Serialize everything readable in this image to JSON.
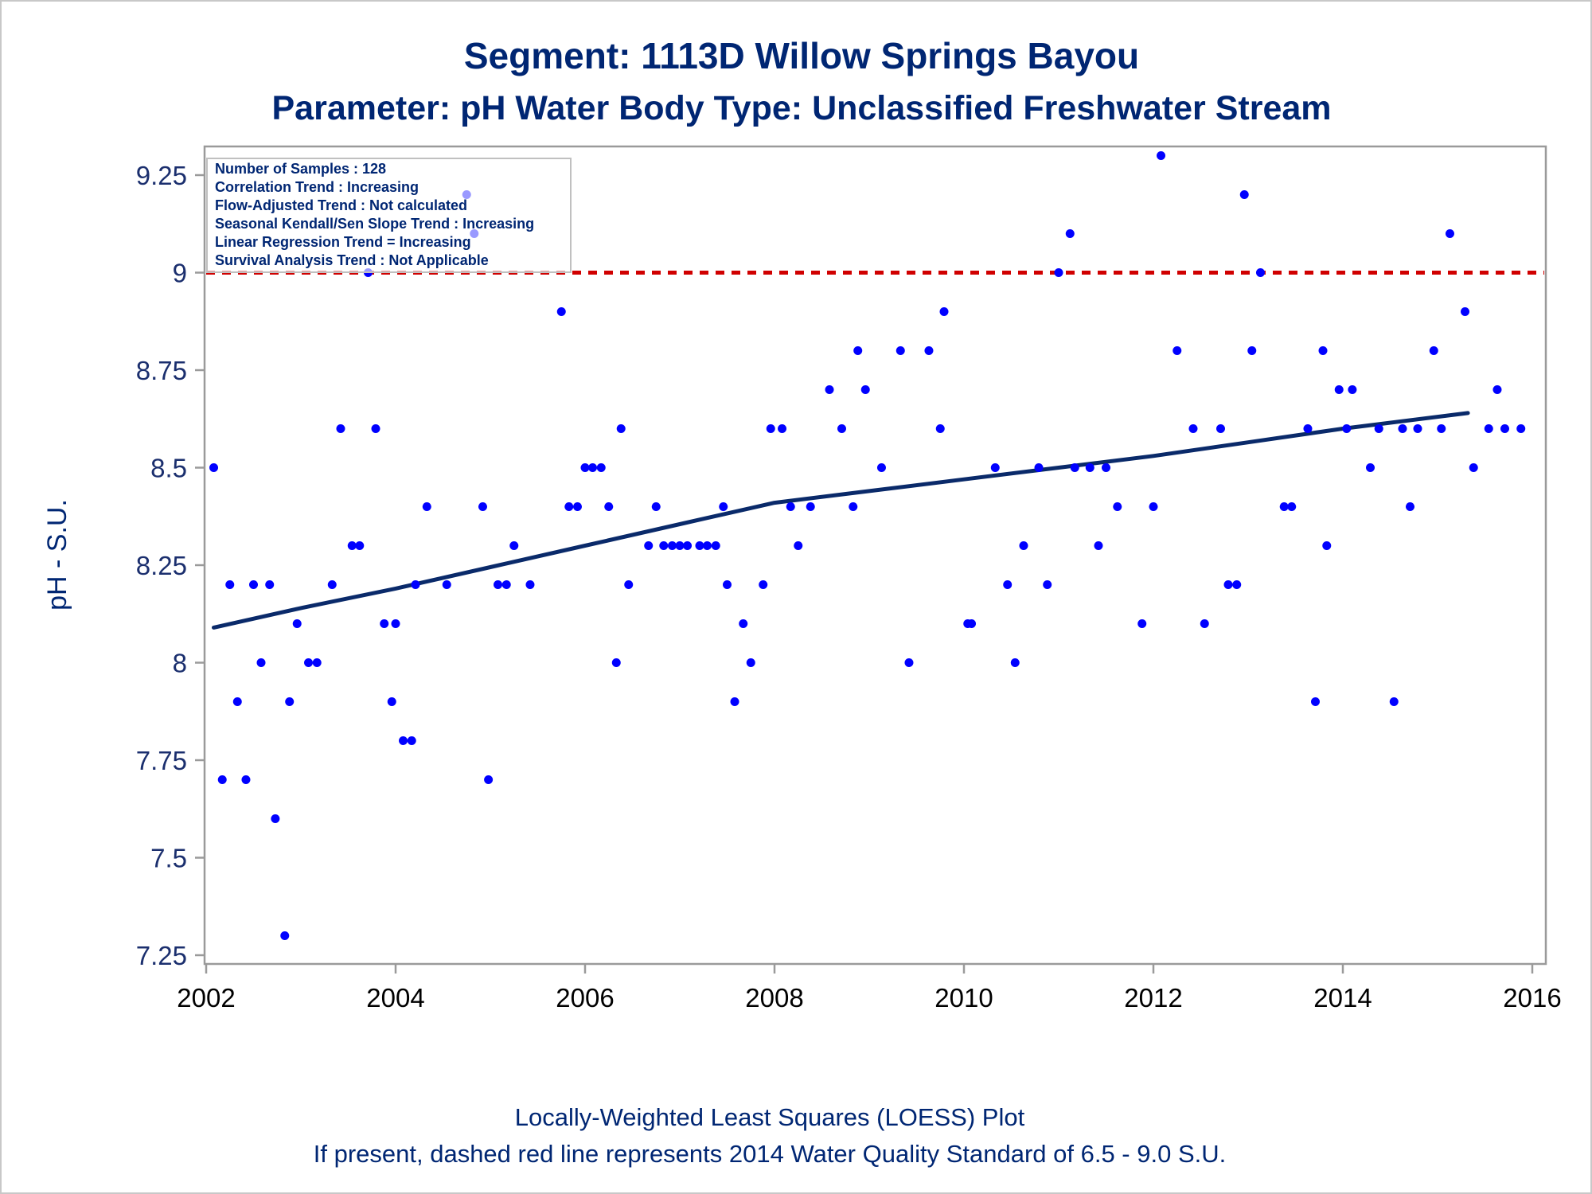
{
  "chart_data": {
    "type": "scatter",
    "title": "Segment: 1113D  Willow Springs Bayou",
    "subtitle": "Parameter: pH   Water Body Type: Unclassified Freshwater Stream",
    "xlabel": "",
    "ylabel": "pH - S.U.",
    "xlim": [
      2002,
      2016
    ],
    "ylim": [
      7.23,
      9.35
    ],
    "x_ticks": [
      2002,
      2004,
      2006,
      2008,
      2010,
      2012,
      2014,
      2016
    ],
    "y_ticks": [
      {
        "value": 7.25,
        "label": "7.25"
      },
      {
        "value": 7.5,
        "label": "7.5"
      },
      {
        "value": 7.75,
        "label": "7.75"
      },
      {
        "value": 8,
        "label": "8"
      },
      {
        "value": 8.25,
        "label": "8.25"
      },
      {
        "value": 8.5,
        "label": "8.5"
      },
      {
        "value": 8.75,
        "label": "8.75"
      },
      {
        "value": 9,
        "label": "9"
      },
      {
        "value": 9.25,
        "label": "9.25"
      }
    ],
    "grid": false,
    "colors": {
      "points": "#0000ff",
      "loess": "#0a2a6a",
      "standard": "#d00000",
      "title": "#002673"
    },
    "standard_line": {
      "y": 9.0,
      "style": "dashed"
    },
    "stats_box": {
      "placement": "top-left",
      "lines": [
        "Number of Samples : 128",
        "Correlation Trend : Increasing",
        "Flow-Adjusted Trend : Not calculated",
        "Seasonal Kendall/Sen Slope Trend : Increasing",
        "Linear Regression Trend = Increasing",
        "Survival Analysis Trend : Not Applicable"
      ]
    },
    "loess_line": [
      [
        2002.08,
        8.09
      ],
      [
        2003.0,
        8.14
      ],
      [
        2004.0,
        8.19
      ],
      [
        2005.0,
        8.245
      ],
      [
        2006.0,
        8.3
      ],
      [
        2007.0,
        8.355
      ],
      [
        2008.0,
        8.41
      ],
      [
        2009.0,
        8.44
      ],
      [
        2010.0,
        8.47
      ],
      [
        2011.0,
        8.5
      ],
      [
        2012.0,
        8.53
      ],
      [
        2013.0,
        8.565
      ],
      [
        2014.0,
        8.6
      ],
      [
        2015.32,
        8.64
      ]
    ],
    "points": [
      [
        2002.08,
        8.5
      ],
      [
        2002.17,
        7.7
      ],
      [
        2002.25,
        8.2
      ],
      [
        2002.33,
        7.9
      ],
      [
        2002.42,
        7.7
      ],
      [
        2002.5,
        8.2
      ],
      [
        2002.58,
        8.0
      ],
      [
        2002.67,
        8.2
      ],
      [
        2002.73,
        7.6
      ],
      [
        2002.83,
        7.3
      ],
      [
        2002.88,
        7.9
      ],
      [
        2002.96,
        8.1
      ],
      [
        2003.08,
        8.0
      ],
      [
        2003.17,
        8.0
      ],
      [
        2003.33,
        8.2
      ],
      [
        2003.42,
        8.6
      ],
      [
        2003.54,
        8.3
      ],
      [
        2003.62,
        8.3
      ],
      [
        2003.71,
        9.0
      ],
      [
        2003.79,
        8.6
      ],
      [
        2003.88,
        8.1
      ],
      [
        2003.96,
        7.9
      ],
      [
        2004.0,
        8.1
      ],
      [
        2004.08,
        7.8
      ],
      [
        2004.17,
        7.8
      ],
      [
        2004.21,
        8.2
      ],
      [
        2004.33,
        8.4
      ],
      [
        2004.54,
        8.2
      ],
      [
        2004.75,
        9.2
      ],
      [
        2004.83,
        9.1
      ],
      [
        2004.92,
        8.4
      ],
      [
        2004.98,
        7.7
      ],
      [
        2005.08,
        8.2
      ],
      [
        2005.17,
        8.2
      ],
      [
        2005.25,
        8.3
      ],
      [
        2005.42,
        8.2
      ],
      [
        2005.75,
        8.9
      ],
      [
        2005.83,
        8.4
      ],
      [
        2005.92,
        8.4
      ],
      [
        2006.0,
        8.5
      ],
      [
        2006.08,
        8.5
      ],
      [
        2006.17,
        8.5
      ],
      [
        2006.25,
        8.4
      ],
      [
        2006.33,
        8.0
      ],
      [
        2006.38,
        8.6
      ],
      [
        2006.46,
        8.2
      ],
      [
        2006.67,
        8.3
      ],
      [
        2006.75,
        8.4
      ],
      [
        2006.83,
        8.3
      ],
      [
        2006.92,
        8.3
      ],
      [
        2007.0,
        8.3
      ],
      [
        2007.08,
        8.3
      ],
      [
        2007.21,
        8.3
      ],
      [
        2007.29,
        8.3
      ],
      [
        2007.38,
        8.3
      ],
      [
        2007.46,
        8.4
      ],
      [
        2007.5,
        8.2
      ],
      [
        2007.58,
        7.9
      ],
      [
        2007.67,
        8.1
      ],
      [
        2007.75,
        8.0
      ],
      [
        2007.88,
        8.2
      ],
      [
        2007.96,
        8.6
      ],
      [
        2008.08,
        8.6
      ],
      [
        2008.17,
        8.4
      ],
      [
        2008.25,
        8.3
      ],
      [
        2008.38,
        8.4
      ],
      [
        2008.58,
        8.7
      ],
      [
        2008.71,
        8.6
      ],
      [
        2008.83,
        8.4
      ],
      [
        2008.88,
        8.8
      ],
      [
        2008.96,
        8.7
      ],
      [
        2009.13,
        8.5
      ],
      [
        2009.33,
        8.8
      ],
      [
        2009.42,
        8.0
      ],
      [
        2009.63,
        8.8
      ],
      [
        2009.75,
        8.6
      ],
      [
        2009.79,
        8.9
      ],
      [
        2010.04,
        8.1
      ],
      [
        2010.08,
        8.1
      ],
      [
        2010.33,
        8.5
      ],
      [
        2010.46,
        8.2
      ],
      [
        2010.54,
        8.0
      ],
      [
        2010.63,
        8.3
      ],
      [
        2010.79,
        8.5
      ],
      [
        2010.88,
        8.2
      ],
      [
        2011.0,
        9.0
      ],
      [
        2011.12,
        9.1
      ],
      [
        2011.17,
        8.5
      ],
      [
        2011.33,
        8.5
      ],
      [
        2011.42,
        8.3
      ],
      [
        2011.5,
        8.5
      ],
      [
        2011.62,
        8.4
      ],
      [
        2011.88,
        8.1
      ],
      [
        2012.0,
        8.4
      ],
      [
        2012.08,
        9.3
      ],
      [
        2012.25,
        8.8
      ],
      [
        2012.42,
        8.6
      ],
      [
        2012.54,
        8.1
      ],
      [
        2012.71,
        8.6
      ],
      [
        2012.79,
        8.2
      ],
      [
        2012.88,
        8.2
      ],
      [
        2012.96,
        9.2
      ],
      [
        2013.04,
        8.8
      ],
      [
        2013.13,
        9.0
      ],
      [
        2013.38,
        8.4
      ],
      [
        2013.46,
        8.4
      ],
      [
        2013.63,
        8.6
      ],
      [
        2013.71,
        7.9
      ],
      [
        2013.79,
        8.8
      ],
      [
        2013.83,
        8.3
      ],
      [
        2013.96,
        8.7
      ],
      [
        2014.04,
        8.6
      ],
      [
        2014.1,
        8.7
      ],
      [
        2014.29,
        8.5
      ],
      [
        2014.38,
        8.6
      ],
      [
        2014.54,
        7.9
      ],
      [
        2014.63,
        8.6
      ],
      [
        2014.71,
        8.4
      ],
      [
        2014.79,
        8.6
      ],
      [
        2014.96,
        8.8
      ],
      [
        2015.04,
        8.6
      ],
      [
        2015.13,
        9.1
      ],
      [
        2015.29,
        8.9
      ],
      [
        2015.38,
        8.5
      ],
      [
        2015.54,
        8.6
      ],
      [
        2015.63,
        8.7
      ],
      [
        2015.71,
        8.6
      ],
      [
        2015.88,
        8.6
      ]
    ],
    "footnotes": [
      "Locally-Weighted Least Squares (LOESS) Plot",
      "If present, dashed red line represents 2014 Water Quality Standard of 6.5 - 9.0 S.U."
    ]
  }
}
